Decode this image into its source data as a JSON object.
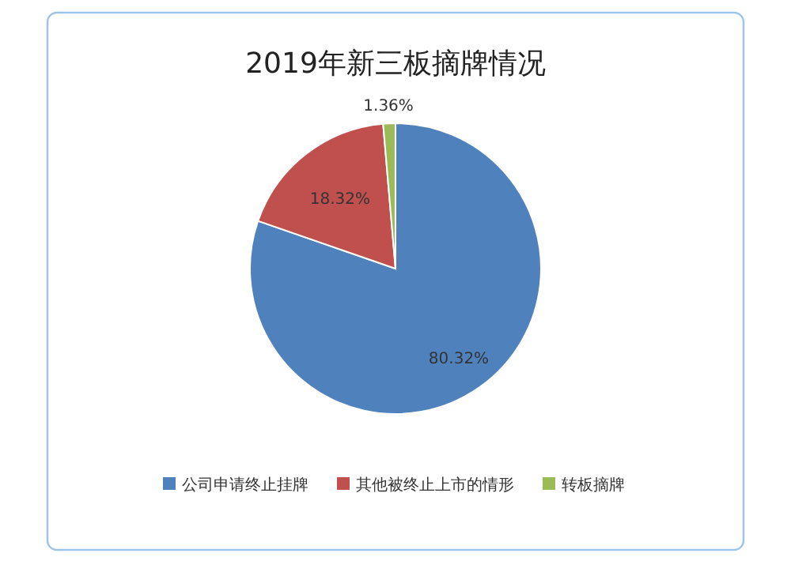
{
  "chart_data": {
    "type": "pie",
    "title": "2019年新三板摘牌情况",
    "categories": [
      "公司申请终止挂牌",
      "其他被终止上市的情形",
      "转板摘牌"
    ],
    "values": [
      80.32,
      18.32,
      1.36
    ],
    "colors": [
      "#4f81bd",
      "#c0504d",
      "#9bbb59"
    ],
    "value_labels": [
      "80.32%",
      "18.32%",
      "1.36%"
    ],
    "legend": "bottom"
  }
}
